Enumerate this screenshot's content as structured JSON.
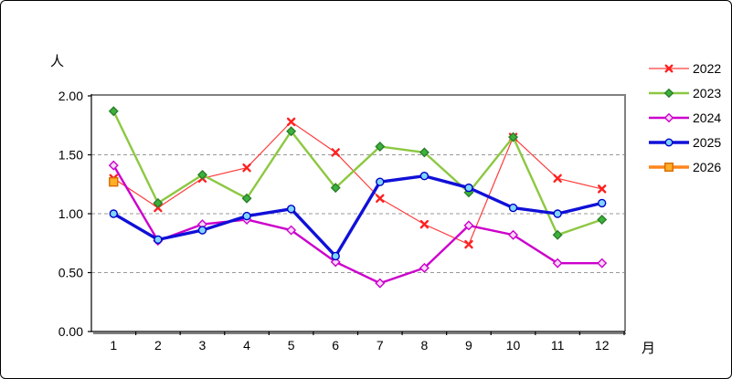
{
  "window": {
    "background": "#ffffff",
    "border_color": "#000000"
  },
  "chart_data": {
    "type": "line",
    "title": "",
    "ylabel": "人",
    "xlabel": "月",
    "x": [
      1,
      2,
      3,
      4,
      5,
      6,
      7,
      8,
      9,
      10,
      11,
      12
    ],
    "ylim": [
      0,
      2
    ],
    "ytick_step": 0.5,
    "ytick_labels": [
      "0.00",
      "0.50",
      "1.00",
      "1.50",
      "2.00"
    ],
    "grid": true,
    "gridline_color": "#999999",
    "plot_border_gray": "#808080",
    "axis_color": "#000000",
    "legend_position": "right",
    "series": [
      {
        "name": "2022",
        "marker": "x",
        "line_color": "#ff3c3c",
        "marker_edge": "#ff2020",
        "marker_fill": "#ff2020",
        "line_width": 1.2,
        "values": [
          1.3,
          1.05,
          1.3,
          1.39,
          1.78,
          1.52,
          1.13,
          0.91,
          0.74,
          1.65,
          1.3,
          1.21
        ]
      },
      {
        "name": "2023",
        "marker": "diamond",
        "line_color": "#8cc841",
        "marker_edge": "#2b7f2b",
        "marker_fill": "#3cb23c",
        "line_width": 2.4,
        "values": [
          1.87,
          1.09,
          1.33,
          1.13,
          1.7,
          1.22,
          1.57,
          1.52,
          1.18,
          1.65,
          0.82,
          0.95
        ]
      },
      {
        "name": "2024",
        "marker": "open-diamond",
        "line_color": "#cc00cc",
        "marker_edge": "#cc00cc",
        "marker_fill": "#f8d8f8",
        "line_width": 2.4,
        "values": [
          1.41,
          0.77,
          0.91,
          0.95,
          0.86,
          0.59,
          0.41,
          0.54,
          0.9,
          0.82,
          0.58,
          0.58
        ]
      },
      {
        "name": "2025",
        "marker": "circle",
        "line_color": "#1010d8",
        "marker_edge": "#0000c8",
        "marker_fill": "#7fd6ff",
        "line_width": 3.4,
        "values": [
          1.0,
          0.78,
          0.86,
          0.98,
          1.04,
          0.64,
          1.27,
          1.32,
          1.22,
          1.05,
          1.0,
          1.09
        ]
      },
      {
        "name": "2026",
        "marker": "square",
        "line_color": "#ff851e",
        "marker_edge": "#d96a00",
        "marker_fill": "#ffaf28",
        "line_width": 3.4,
        "values": [
          1.27,
          null,
          null,
          null,
          null,
          null,
          null,
          null,
          null,
          null,
          null,
          null
        ]
      }
    ]
  }
}
